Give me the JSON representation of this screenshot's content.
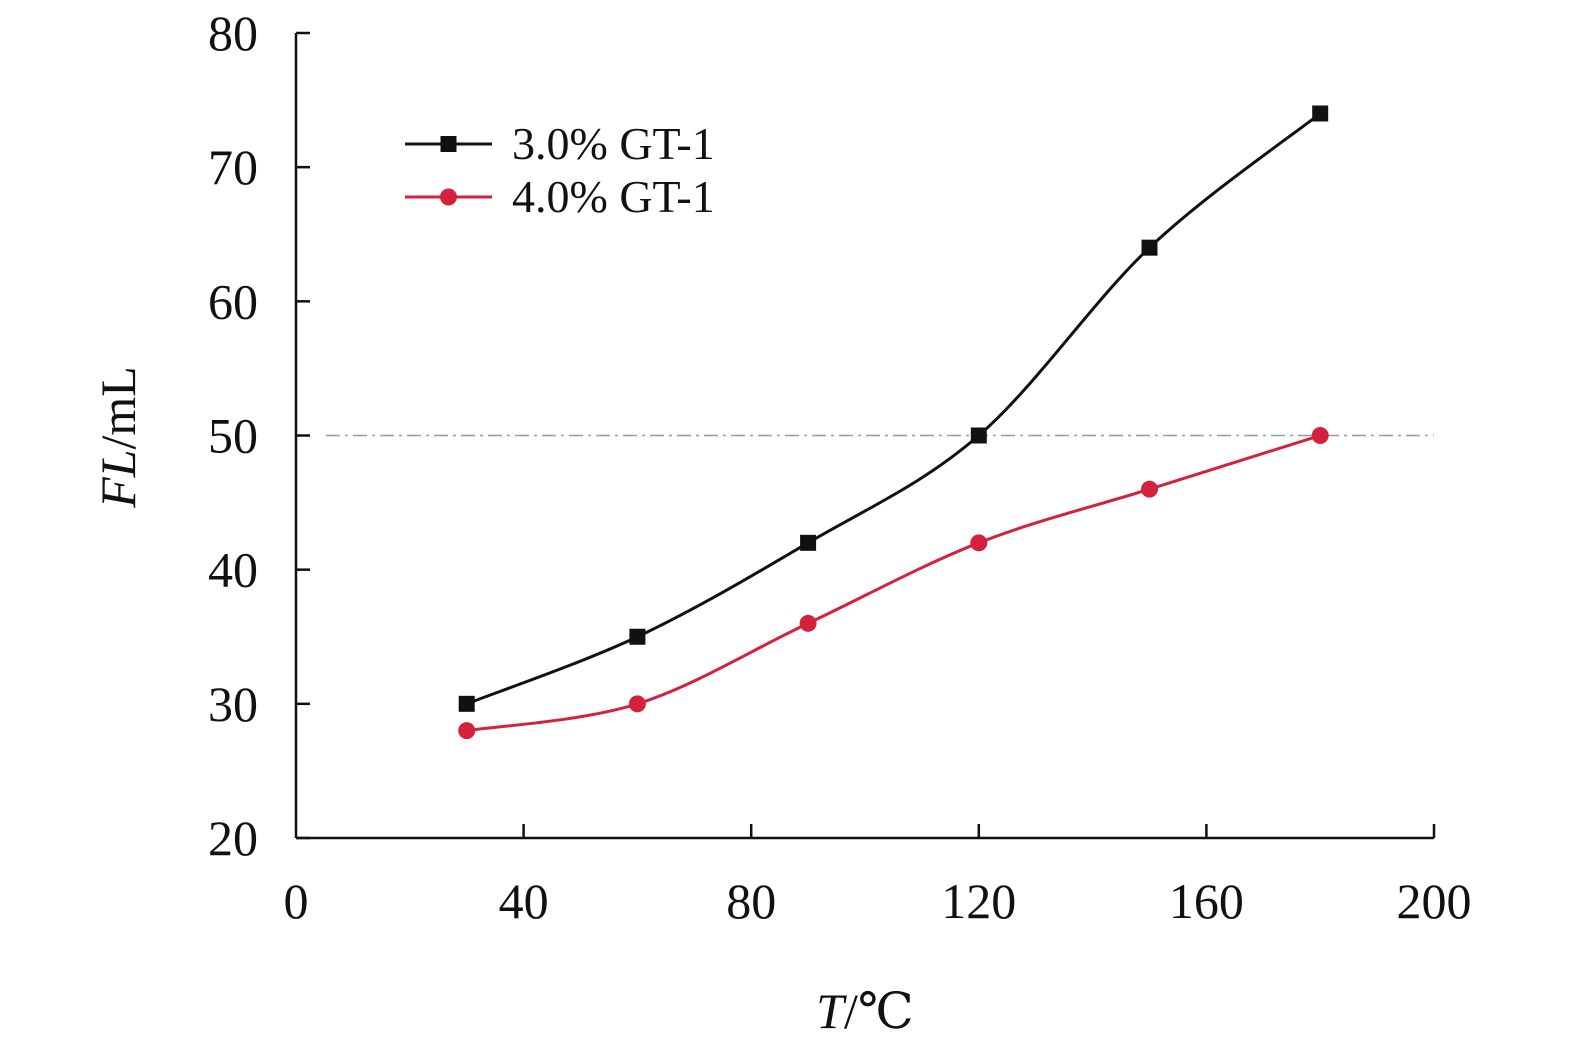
{
  "chart_data": {
    "type": "line",
    "xlabel_italic": "T",
    "xlabel_unit": "/℃",
    "ylabel_italic": "FL",
    "ylabel_unit": "/mL",
    "xlim": [
      0,
      200
    ],
    "ylim": [
      20,
      80
    ],
    "x_ticks": [
      0,
      40,
      80,
      120,
      160,
      200
    ],
    "y_ticks": [
      20,
      30,
      40,
      50,
      60,
      70,
      80
    ],
    "grid": false,
    "legend_position": "top-left",
    "reference_line": {
      "y": 50,
      "style": "dash-dot",
      "color": "#9a9a9a"
    },
    "series": [
      {
        "name": "3.0% GT-1",
        "marker": "square",
        "color": "#111111",
        "x": [
          30,
          60,
          90,
          120,
          150,
          180
        ],
        "y": [
          30,
          35,
          42,
          50,
          64,
          74
        ]
      },
      {
        "name": "4.0% GT-1",
        "marker": "circle",
        "color": "#d4213d",
        "x": [
          30,
          60,
          90,
          120,
          150,
          180
        ],
        "y": [
          28,
          30,
          36,
          42,
          46,
          50
        ]
      }
    ]
  }
}
